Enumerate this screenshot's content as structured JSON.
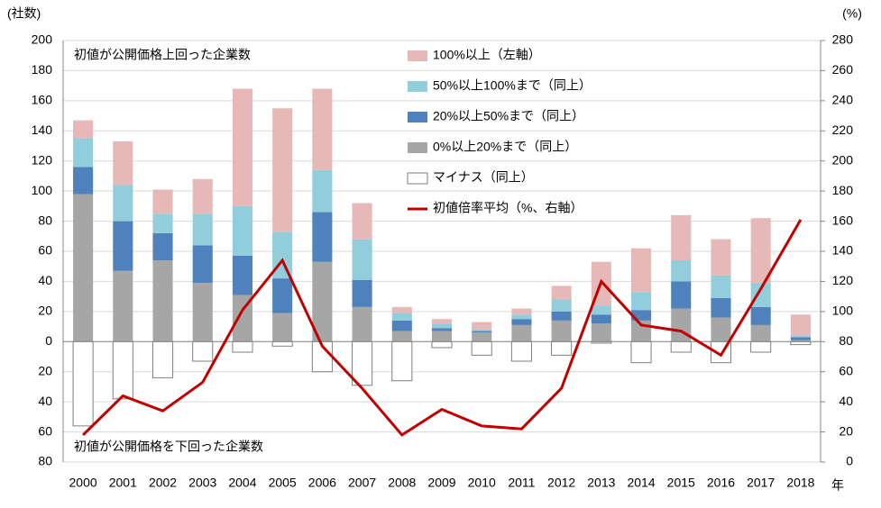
{
  "chart_data": {
    "type": "bar",
    "y_axis_label": "(社数)",
    "y2_axis_label": "(%)",
    "x_axis_label": "年",
    "annotations": [
      "初値が公開価格上回った企業数",
      "初値が公開価格を下回った企業数"
    ],
    "categories": [
      "2000",
      "2001",
      "2002",
      "2003",
      "2004",
      "2005",
      "2006",
      "2007",
      "2008",
      "2009",
      "2010",
      "2011",
      "2012",
      "2013",
      "2014",
      "2015",
      "2016",
      "2017",
      "2018"
    ],
    "series": [
      {
        "name": "100%以上（左軸）",
        "type": "bar",
        "color": "#e6b9b8",
        "values": [
          12,
          29,
          16,
          23,
          78,
          82,
          54,
          24,
          4,
          3,
          5,
          4,
          9,
          29,
          29,
          30,
          24,
          43,
          14
        ]
      },
      {
        "name": "50%以上100%まで（同上）",
        "type": "bar",
        "color": "#92cddc",
        "values": [
          19,
          24,
          13,
          21,
          33,
          31,
          28,
          27,
          5,
          3,
          1,
          3,
          8,
          6,
          12,
          14,
          15,
          16,
          1
        ]
      },
      {
        "name": "20%以上50%まで（同上）",
        "type": "bar",
        "color": "#4f81bd",
        "values": [
          18,
          33,
          18,
          25,
          26,
          23,
          33,
          18,
          7,
          2,
          1,
          4,
          6,
          6,
          7,
          18,
          13,
          12,
          2
        ]
      },
      {
        "name": "0%以上20%まで（同上）",
        "type": "bar",
        "color": "#a6a6a6",
        "values": [
          98,
          47,
          54,
          39,
          31,
          19,
          53,
          23,
          7,
          7,
          6,
          11,
          14,
          12,
          14,
          22,
          16,
          11,
          1
        ]
      },
      {
        "name": "マイナス（同上）",
        "type": "bar",
        "color": "#ffffff",
        "values": [
          -56,
          -38,
          -24,
          -13,
          -7,
          -3,
          -20,
          -29,
          -26,
          -4,
          -9,
          -13,
          -9,
          -1,
          -14,
          -7,
          -14,
          -7,
          -2
        ]
      },
      {
        "name": "初値倍率平均（%、右軸）",
        "type": "line",
        "axis": "y2",
        "color": "#c00000",
        "values": [
          18,
          44,
          34,
          53,
          101,
          134,
          77,
          49,
          18,
          35,
          24,
          22,
          49,
          120,
          91,
          87,
          71,
          115,
          161
        ]
      }
    ],
    "ylim": [
      -80,
      200
    ],
    "yticks": [
      {
        "value": -80,
        "label": "80"
      },
      {
        "value": -60,
        "label": "60"
      },
      {
        "value": -40,
        "label": "40"
      },
      {
        "value": -20,
        "label": "20"
      },
      0,
      20,
      40,
      60,
      80,
      100,
      120,
      140,
      160,
      180,
      200
    ],
    "y2lim": [
      0,
      280
    ],
    "y2ticks": [
      0,
      20,
      40,
      60,
      80,
      100,
      120,
      140,
      160,
      180,
      200,
      220,
      240,
      260,
      280
    ],
    "grid": true
  }
}
